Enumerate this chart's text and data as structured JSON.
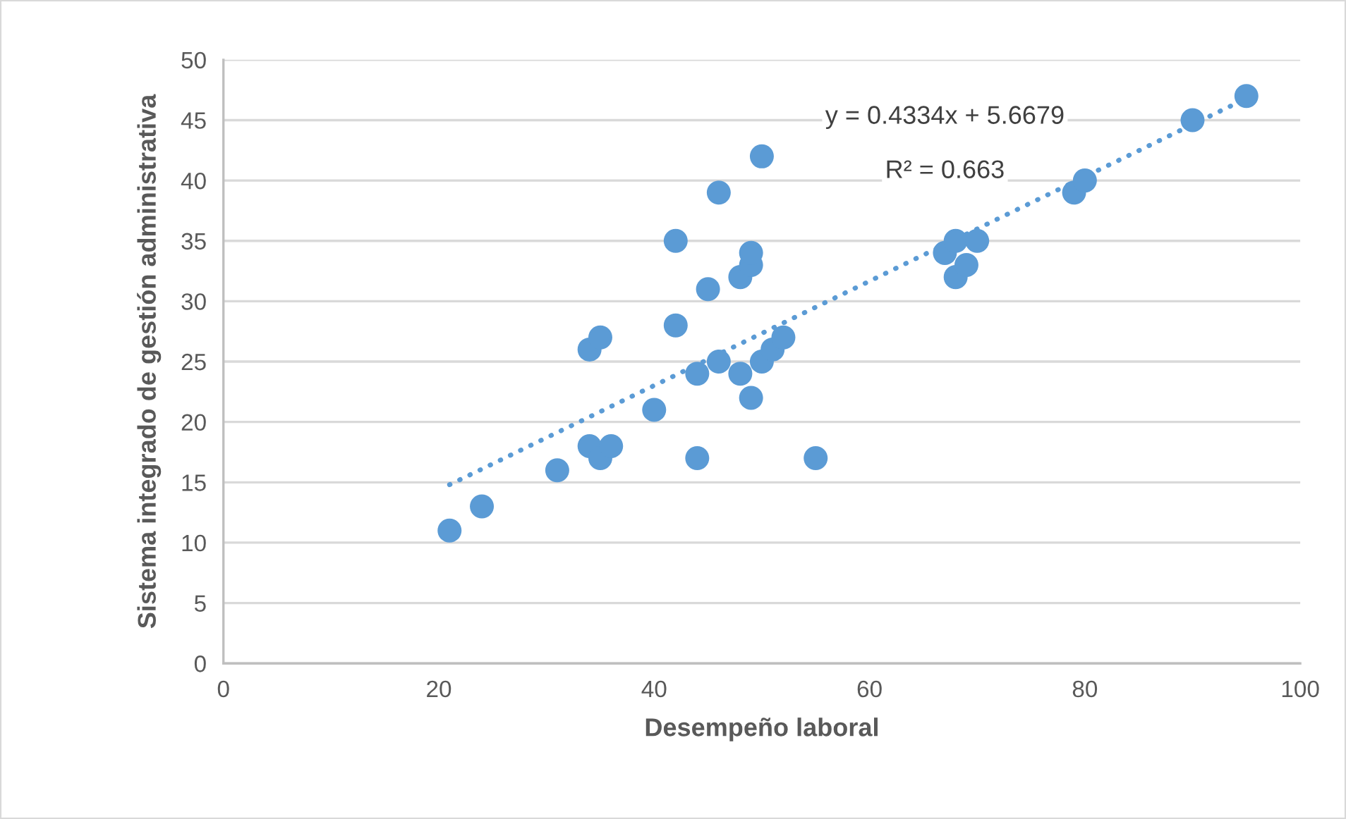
{
  "chart_data": {
    "type": "scatter",
    "xlabel": "Desempeño laboral",
    "ylabel": "Sistema integrado de gestión administrativa",
    "series": [
      {
        "color": "#5b9bd5",
        "marker": "circle",
        "x": [
          21,
          24,
          31,
          34,
          35,
          36,
          34,
          35,
          40,
          42,
          42,
          44,
          44,
          45,
          46,
          46,
          48,
          48,
          49,
          49,
          49,
          50,
          50,
          51,
          52,
          55,
          67,
          68,
          68,
          69,
          70,
          79,
          80,
          90,
          95
        ],
        "values": [
          11,
          13,
          16,
          18,
          17,
          18,
          26,
          27,
          21,
          28,
          35,
          24,
          17,
          31,
          25,
          39,
          32,
          24,
          33,
          34,
          22,
          25,
          42,
          26,
          27,
          17,
          34,
          35,
          32,
          33,
          35,
          39,
          40,
          45,
          47
        ]
      },
      {
        "type": "line",
        "color": "#5b9bd5",
        "line_style": "dotted",
        "x": [
          21,
          95
        ],
        "values": [
          14.8,
          46.8
        ]
      }
    ],
    "annotations": [
      "y = 0.4334x + 5.6679",
      "R² = 0.663"
    ],
    "xlim": [
      0,
      100
    ],
    "xticks": [
      0,
      20,
      40,
      60,
      80,
      100
    ],
    "ylim": [
      0,
      50
    ],
    "yticks": [
      0,
      5,
      10,
      15,
      20,
      25,
      30,
      35,
      40,
      45,
      50
    ],
    "grid": "y"
  }
}
